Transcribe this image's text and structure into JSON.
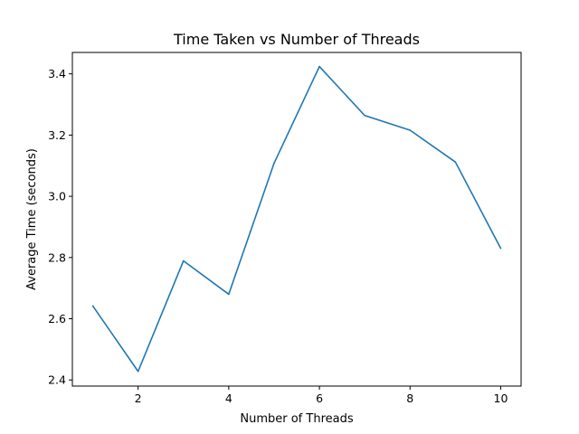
{
  "chart_data": {
    "type": "line",
    "title": "Time Taken vs Number of Threads",
    "xlabel": "Number of Threads",
    "ylabel": "Average Time (seconds)",
    "x": [
      1,
      2,
      3,
      4,
      5,
      6,
      7,
      8,
      9,
      10
    ],
    "series": [
      {
        "values": [
          2.642,
          2.428,
          2.789,
          2.68,
          3.108,
          3.424,
          3.264,
          3.216,
          3.112,
          2.83
        ],
        "color": "#1f77b4"
      }
    ],
    "xlim": [
      0.55,
      10.45
    ],
    "ylim": [
      2.38,
      3.47
    ],
    "xticks": [
      2,
      4,
      6,
      8,
      10
    ],
    "yticks": [
      2.4,
      2.6,
      2.8,
      3.0,
      3.2,
      3.4
    ],
    "ytick_labels": [
      "2.4",
      "2.6",
      "2.8",
      "3.0",
      "3.2",
      "3.4"
    ],
    "grid": false,
    "legend": null
  }
}
